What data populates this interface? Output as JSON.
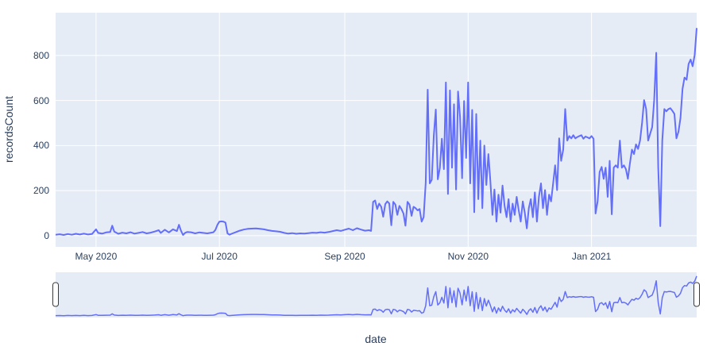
{
  "chart_data": {
    "type": "line",
    "title": "",
    "xlabel": "date",
    "ylabel": "recordsCount",
    "legend": "none",
    "grid": "on",
    "plot_bgcolor": "#e5ecf6",
    "paper_bgcolor": "#ffffff",
    "grid_color": "#ffffff",
    "line_color": "#636efa",
    "font_color": "#2a3f5f",
    "handle_stroke": "#3a3a3a",
    "handle_fill": "#ffffff",
    "x_range": [
      "2020-04-11",
      "2021-02-22"
    ],
    "ylim": [
      -50,
      990
    ],
    "yticks": [
      0,
      200,
      400,
      600,
      800
    ],
    "xticks": [
      {
        "date": "2020-05-01",
        "label": "May 2020"
      },
      {
        "date": "2020-07-01",
        "label": "Jul 2020"
      },
      {
        "date": "2020-09-01",
        "label": "Sep 2020"
      },
      {
        "date": "2020-11-01",
        "label": "Nov 2020"
      },
      {
        "date": "2021-01-01",
        "label": "Jan 2021"
      }
    ],
    "rangeslider": {
      "visible": true,
      "ylim": [
        -40,
        1010
      ]
    },
    "series": [
      {
        "name": "recordsCount",
        "points": [
          [
            "2020-04-11",
            4
          ],
          [
            "2020-04-13",
            6
          ],
          [
            "2020-04-15",
            3
          ],
          [
            "2020-04-17",
            7
          ],
          [
            "2020-04-19",
            4
          ],
          [
            "2020-04-21",
            8
          ],
          [
            "2020-04-23",
            5
          ],
          [
            "2020-04-25",
            9
          ],
          [
            "2020-04-27",
            5
          ],
          [
            "2020-04-29",
            7
          ],
          [
            "2020-05-01",
            28
          ],
          [
            "2020-05-02",
            12
          ],
          [
            "2020-05-04",
            9
          ],
          [
            "2020-05-06",
            14
          ],
          [
            "2020-05-08",
            16
          ],
          [
            "2020-05-09",
            44
          ],
          [
            "2020-05-10",
            18
          ],
          [
            "2020-05-12",
            8
          ],
          [
            "2020-05-14",
            13
          ],
          [
            "2020-05-16",
            10
          ],
          [
            "2020-05-18",
            15
          ],
          [
            "2020-05-20",
            9
          ],
          [
            "2020-05-22",
            12
          ],
          [
            "2020-05-24",
            16
          ],
          [
            "2020-05-26",
            10
          ],
          [
            "2020-05-28",
            13
          ],
          [
            "2020-05-30",
            18
          ],
          [
            "2020-06-01",
            24
          ],
          [
            "2020-06-02",
            12
          ],
          [
            "2020-06-04",
            26
          ],
          [
            "2020-06-06",
            14
          ],
          [
            "2020-06-08",
            28
          ],
          [
            "2020-06-10",
            20
          ],
          [
            "2020-06-11",
            48
          ],
          [
            "2020-06-12",
            22
          ],
          [
            "2020-06-13",
            3
          ],
          [
            "2020-06-14",
            12
          ],
          [
            "2020-06-15",
            16
          ],
          [
            "2020-06-17",
            15
          ],
          [
            "2020-06-19",
            10
          ],
          [
            "2020-06-21",
            14
          ],
          [
            "2020-06-23",
            12
          ],
          [
            "2020-06-25",
            10
          ],
          [
            "2020-06-27",
            13
          ],
          [
            "2020-06-28",
            15
          ],
          [
            "2020-06-29",
            25
          ],
          [
            "2020-06-30",
            48
          ],
          [
            "2020-07-01",
            62
          ],
          [
            "2020-07-02",
            63
          ],
          [
            "2020-07-03",
            62
          ],
          [
            "2020-07-04",
            58
          ],
          [
            "2020-07-05",
            10
          ],
          [
            "2020-07-06",
            4
          ],
          [
            "2020-07-07",
            8
          ],
          [
            "2020-07-09",
            15
          ],
          [
            "2020-07-11",
            22
          ],
          [
            "2020-07-13",
            27
          ],
          [
            "2020-07-15",
            30
          ],
          [
            "2020-07-17",
            31
          ],
          [
            "2020-07-19",
            32
          ],
          [
            "2020-07-21",
            30
          ],
          [
            "2020-07-23",
            28
          ],
          [
            "2020-07-25",
            24
          ],
          [
            "2020-07-27",
            21
          ],
          [
            "2020-07-29",
            19
          ],
          [
            "2020-07-31",
            17
          ],
          [
            "2020-08-02",
            12
          ],
          [
            "2020-08-04",
            9
          ],
          [
            "2020-08-06",
            11
          ],
          [
            "2020-08-08",
            8
          ],
          [
            "2020-08-10",
            10
          ],
          [
            "2020-08-12",
            9
          ],
          [
            "2020-08-14",
            11
          ],
          [
            "2020-08-16",
            13
          ],
          [
            "2020-08-18",
            12
          ],
          [
            "2020-08-20",
            15
          ],
          [
            "2020-08-22",
            13
          ],
          [
            "2020-08-24",
            16
          ],
          [
            "2020-08-26",
            20
          ],
          [
            "2020-08-28",
            24
          ],
          [
            "2020-08-30",
            21
          ],
          [
            "2020-09-01",
            26
          ],
          [
            "2020-09-03",
            31
          ],
          [
            "2020-09-05",
            24
          ],
          [
            "2020-09-07",
            33
          ],
          [
            "2020-09-09",
            27
          ],
          [
            "2020-09-11",
            22
          ],
          [
            "2020-09-13",
            24
          ],
          [
            "2020-09-14",
            21
          ],
          [
            "2020-09-15",
            150
          ],
          [
            "2020-09-16",
            156
          ],
          [
            "2020-09-17",
            118
          ],
          [
            "2020-09-18",
            142
          ],
          [
            "2020-09-19",
            128
          ],
          [
            "2020-09-20",
            84
          ],
          [
            "2020-09-21",
            140
          ],
          [
            "2020-09-22",
            152
          ],
          [
            "2020-09-23",
            143
          ],
          [
            "2020-09-24",
            46
          ],
          [
            "2020-09-25",
            150
          ],
          [
            "2020-09-26",
            138
          ],
          [
            "2020-09-27",
            92
          ],
          [
            "2020-09-28",
            132
          ],
          [
            "2020-09-29",
            118
          ],
          [
            "2020-09-30",
            98
          ],
          [
            "2020-10-01",
            44
          ],
          [
            "2020-10-02",
            150
          ],
          [
            "2020-10-03",
            138
          ],
          [
            "2020-10-04",
            88
          ],
          [
            "2020-10-05",
            128
          ],
          [
            "2020-10-06",
            122
          ],
          [
            "2020-10-07",
            112
          ],
          [
            "2020-10-08",
            118
          ],
          [
            "2020-10-09",
            62
          ],
          [
            "2020-10-10",
            82
          ],
          [
            "2020-10-11",
            235
          ],
          [
            "2020-10-12",
            648
          ],
          [
            "2020-10-13",
            232
          ],
          [
            "2020-10-14",
            248
          ],
          [
            "2020-10-15",
            445
          ],
          [
            "2020-10-16",
            560
          ],
          [
            "2020-10-17",
            250
          ],
          [
            "2020-10-18",
            300
          ],
          [
            "2020-10-19",
            430
          ],
          [
            "2020-10-20",
            295
          ],
          [
            "2020-10-21",
            680
          ],
          [
            "2020-10-22",
            185
          ],
          [
            "2020-10-23",
            645
          ],
          [
            "2020-10-24",
            302
          ],
          [
            "2020-10-25",
            583
          ],
          [
            "2020-10-26",
            205
          ],
          [
            "2020-10-27",
            640
          ],
          [
            "2020-10-28",
            528
          ],
          [
            "2020-10-29",
            255
          ],
          [
            "2020-10-30",
            598
          ],
          [
            "2020-10-31",
            345
          ],
          [
            "2020-11-01",
            680
          ],
          [
            "2020-11-02",
            232
          ],
          [
            "2020-11-03",
            558
          ],
          [
            "2020-11-04",
            104
          ],
          [
            "2020-11-05",
            540
          ],
          [
            "2020-11-06",
            162
          ],
          [
            "2020-11-07",
            422
          ],
          [
            "2020-11-08",
            122
          ],
          [
            "2020-11-09",
            400
          ],
          [
            "2020-11-10",
            225
          ],
          [
            "2020-11-11",
            362
          ],
          [
            "2020-11-12",
            242
          ],
          [
            "2020-11-13",
            92
          ],
          [
            "2020-11-14",
            205
          ],
          [
            "2020-11-15",
            62
          ],
          [
            "2020-11-16",
            182
          ],
          [
            "2020-11-17",
            102
          ],
          [
            "2020-11-18",
            222
          ],
          [
            "2020-11-19",
            132
          ],
          [
            "2020-11-20",
            82
          ],
          [
            "2020-11-21",
            162
          ],
          [
            "2020-11-22",
            62
          ],
          [
            "2020-11-23",
            142
          ],
          [
            "2020-11-24",
            92
          ],
          [
            "2020-11-25",
            172
          ],
          [
            "2020-11-26",
            112
          ],
          [
            "2020-11-27",
            62
          ],
          [
            "2020-11-28",
            152
          ],
          [
            "2020-11-29",
            102
          ],
          [
            "2020-11-30",
            32
          ],
          [
            "2020-12-01",
            122
          ],
          [
            "2020-12-02",
            162
          ],
          [
            "2020-12-03",
            82
          ],
          [
            "2020-12-04",
            192
          ],
          [
            "2020-12-05",
            62
          ],
          [
            "2020-12-06",
            172
          ],
          [
            "2020-12-07",
            232
          ],
          [
            "2020-12-08",
            122
          ],
          [
            "2020-12-09",
            202
          ],
          [
            "2020-12-10",
            92
          ],
          [
            "2020-12-11",
            182
          ],
          [
            "2020-12-12",
            152
          ],
          [
            "2020-12-13",
            232
          ],
          [
            "2020-12-14",
            312
          ],
          [
            "2020-12-15",
            202
          ],
          [
            "2020-12-16",
            432
          ],
          [
            "2020-12-17",
            332
          ],
          [
            "2020-12-18",
            382
          ],
          [
            "2020-12-19",
            562
          ],
          [
            "2020-12-20",
            422
          ],
          [
            "2020-12-21",
            442
          ],
          [
            "2020-12-22",
            432
          ],
          [
            "2020-12-23",
            446
          ],
          [
            "2020-12-24",
            432
          ],
          [
            "2020-12-25",
            438
          ],
          [
            "2020-12-26",
            442
          ],
          [
            "2020-12-27",
            446
          ],
          [
            "2020-12-28",
            430
          ],
          [
            "2020-12-29",
            440
          ],
          [
            "2020-12-30",
            436
          ],
          [
            "2020-12-31",
            432
          ],
          [
            "2021-01-01",
            442
          ],
          [
            "2021-01-02",
            430
          ],
          [
            "2021-01-03",
            98
          ],
          [
            "2021-01-04",
            152
          ],
          [
            "2021-01-05",
            282
          ],
          [
            "2021-01-06",
            305
          ],
          [
            "2021-01-07",
            252
          ],
          [
            "2021-01-08",
            302
          ],
          [
            "2021-01-09",
            172
          ],
          [
            "2021-01-10",
            332
          ],
          [
            "2021-01-11",
            95
          ],
          [
            "2021-01-12",
            302
          ],
          [
            "2021-01-13",
            312
          ],
          [
            "2021-01-14",
            302
          ],
          [
            "2021-01-15",
            422
          ],
          [
            "2021-01-16",
            302
          ],
          [
            "2021-01-17",
            312
          ],
          [
            "2021-01-18",
            295
          ],
          [
            "2021-01-19",
            252
          ],
          [
            "2021-01-20",
            322
          ],
          [
            "2021-01-21",
            382
          ],
          [
            "2021-01-22",
            362
          ],
          [
            "2021-01-23",
            405
          ],
          [
            "2021-01-24",
            385
          ],
          [
            "2021-01-25",
            422
          ],
          [
            "2021-01-26",
            502
          ],
          [
            "2021-01-27",
            602
          ],
          [
            "2021-01-28",
            562
          ],
          [
            "2021-01-29",
            422
          ],
          [
            "2021-01-30",
            452
          ],
          [
            "2021-01-31",
            482
          ],
          [
            "2021-02-01",
            602
          ],
          [
            "2021-02-02",
            812
          ],
          [
            "2021-02-03",
            302
          ],
          [
            "2021-02-04",
            42
          ],
          [
            "2021-02-05",
            422
          ],
          [
            "2021-02-06",
            562
          ],
          [
            "2021-02-07",
            552
          ],
          [
            "2021-02-08",
            562
          ],
          [
            "2021-02-09",
            566
          ],
          [
            "2021-02-10",
            554
          ],
          [
            "2021-02-11",
            540
          ],
          [
            "2021-02-12",
            432
          ],
          [
            "2021-02-13",
            462
          ],
          [
            "2021-02-14",
            522
          ],
          [
            "2021-02-15",
            652
          ],
          [
            "2021-02-16",
            702
          ],
          [
            "2021-02-17",
            692
          ],
          [
            "2021-02-18",
            762
          ],
          [
            "2021-02-19",
            782
          ],
          [
            "2021-02-20",
            752
          ],
          [
            "2021-02-21",
            802
          ],
          [
            "2021-02-22",
            922
          ]
        ]
      }
    ]
  }
}
